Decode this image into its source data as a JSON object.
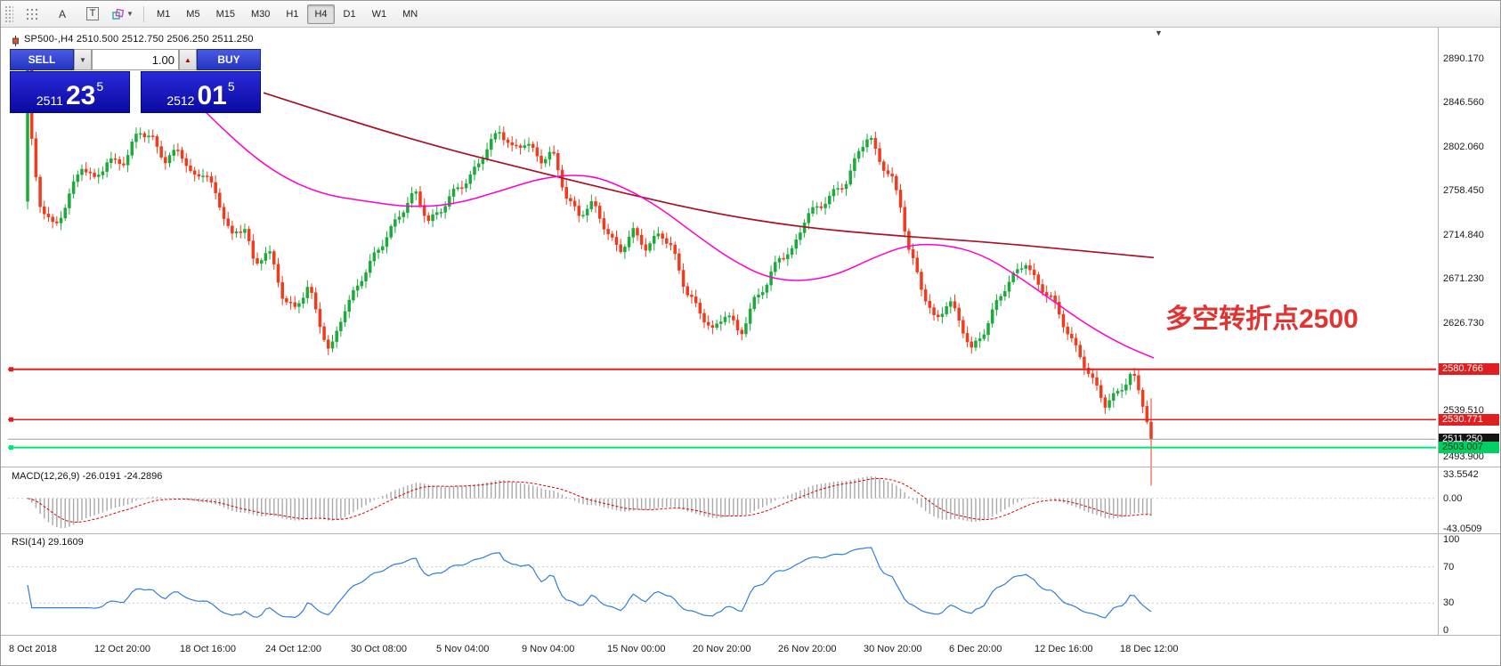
{
  "toolbar": {
    "text_tool_label": "A",
    "label_tool_label": "T",
    "timeframes": [
      "M1",
      "M5",
      "M15",
      "M30",
      "H1",
      "H4",
      "D1",
      "W1",
      "MN"
    ],
    "active_timeframe": "H4"
  },
  "chart": {
    "ohlc_line": "SP500-,H4  2510.500 2512.750 2506.250 2511.250"
  },
  "trade_panel": {
    "sell_label": "SELL",
    "buy_label": "BUY",
    "volume": "1.00",
    "sell_price": {
      "base": "2511",
      "big": "23",
      "sup": "5"
    },
    "buy_price": {
      "base": "2512",
      "big": "01",
      "sup": "5"
    }
  },
  "annotation": {
    "text": "多空转折点2500",
    "color": "#e23333"
  },
  "price_axis": {
    "labels": [
      {
        "text": "2890.170",
        "price": 2890.17
      },
      {
        "text": "2846.560",
        "price": 2846.56
      },
      {
        "text": "2802.060",
        "price": 2802.06
      },
      {
        "text": "2758.450",
        "price": 2758.45
      },
      {
        "text": "2714.840",
        "price": 2714.84
      },
      {
        "text": "2671.230",
        "price": 2671.23
      },
      {
        "text": "2626.730",
        "price": 2626.73
      },
      {
        "text": "2539.510",
        "price": 2539.51
      },
      {
        "text": "2493.900",
        "price": 2493.9
      }
    ],
    "badges": [
      {
        "text": "2580.766",
        "price": 2580.766,
        "bg": "#e02020",
        "fg": "#ffffff"
      },
      {
        "text": "2530.771",
        "price": 2530.771,
        "bg": "#e02020",
        "fg": "#ffffff"
      },
      {
        "text": "2511.250",
        "price": 2511.25,
        "bg": "#141414",
        "fg": "#ffffff"
      },
      {
        "text": "2503.007",
        "price": 2503.007,
        "bg": "#00d063",
        "fg": "#00331a"
      }
    ]
  },
  "macd": {
    "label": "MACD(12,26,9) -26.0191 -24.2896",
    "values": {
      "macd": "-26.0191",
      "signal": "-24.2896"
    },
    "range": {
      "max": 33.5542,
      "min": -43.0509
    },
    "axis": [
      {
        "text": "33.5542",
        "v": 33.5542
      },
      {
        "text": "0.00",
        "v": 0
      },
      {
        "text": "-43.0509",
        "v": -43.0509
      }
    ]
  },
  "rsi": {
    "label": "RSI(14) 29.1609",
    "value": "29.1609",
    "axis": [
      {
        "text": "100",
        "v": 100
      },
      {
        "text": "70",
        "v": 70
      },
      {
        "text": "30",
        "v": 30
      },
      {
        "text": "0",
        "v": 0
      }
    ],
    "guide_levels": [
      70,
      30
    ]
  },
  "time_axis": [
    "8 Oct 2018",
    "12 Oct 20:00",
    "18 Oct 16:00",
    "24 Oct 12:00",
    "30 Oct 08:00",
    "5 Nov 04:00",
    "9 Nov 04:00",
    "15 Nov 00:00",
    "20 Nov 20:00",
    "26 Nov 20:00",
    "30 Nov 20:00",
    "6 Dec 20:00",
    "12 Dec 16:00",
    "18 Dec 12:00"
  ],
  "chart_data": {
    "type": "candlestick",
    "symbol": "SP500-",
    "timeframe": "H4",
    "ohlc_current": {
      "open": 2510.5,
      "high": 2512.75,
      "low": 2506.25,
      "close": 2511.25
    },
    "bid": 2511.235,
    "ask": 2512.015,
    "price_range": {
      "min": 2484,
      "max": 2920
    },
    "levels": [
      {
        "price": 2580.766,
        "color": "#e02020",
        "width": 2,
        "handle": true
      },
      {
        "price": 2530.771,
        "color": "#e02020",
        "width": 1.5,
        "handle": true
      },
      {
        "price": 2511.25,
        "color": "#9a9a9a",
        "width": 1,
        "handle": false
      },
      {
        "price": 2503.007,
        "color": "#00e673",
        "width": 2,
        "handle": true
      }
    ],
    "colors": {
      "up": "#1daa3c",
      "down": "#f03b1d",
      "ma_mid": "#ff00cc",
      "ma_long": "#aa1122",
      "macd_hist": "#a8a8a8",
      "macd_signal": "#dd0000",
      "rsi_line": "#2f7ed8"
    },
    "candle_count": 270,
    "first_candle": {
      "open": 2748,
      "close": 2885,
      "high": 2892,
      "low": 2740
    },
    "last_candle": {
      "close": 2511.25,
      "high": 2552,
      "low": 2465
    },
    "price_path": [
      [
        0.0,
        2885
      ],
      [
        0.004,
        2800
      ],
      [
        0.01,
        2745
      ],
      [
        0.024,
        2722
      ],
      [
        0.036,
        2752
      ],
      [
        0.048,
        2782
      ],
      [
        0.059,
        2768
      ],
      [
        0.071,
        2790
      ],
      [
        0.087,
        2786
      ],
      [
        0.099,
        2818
      ],
      [
        0.111,
        2812
      ],
      [
        0.123,
        2788
      ],
      [
        0.135,
        2798
      ],
      [
        0.147,
        2772
      ],
      [
        0.158,
        2780
      ],
      [
        0.17,
        2745
      ],
      [
        0.182,
        2712
      ],
      [
        0.194,
        2726
      ],
      [
        0.202,
        2682
      ],
      [
        0.214,
        2700
      ],
      [
        0.226,
        2656
      ],
      [
        0.238,
        2642
      ],
      [
        0.25,
        2664
      ],
      [
        0.258,
        2630
      ],
      [
        0.269,
        2598
      ],
      [
        0.281,
        2640
      ],
      [
        0.293,
        2660
      ],
      [
        0.309,
        2695
      ],
      [
        0.321,
        2718
      ],
      [
        0.333,
        2736
      ],
      [
        0.345,
        2756
      ],
      [
        0.357,
        2730
      ],
      [
        0.368,
        2740
      ],
      [
        0.38,
        2756
      ],
      [
        0.392,
        2770
      ],
      [
        0.408,
        2800
      ],
      [
        0.42,
        2816
      ],
      [
        0.432,
        2800
      ],
      [
        0.444,
        2810
      ],
      [
        0.456,
        2786
      ],
      [
        0.467,
        2796
      ],
      [
        0.479,
        2756
      ],
      [
        0.491,
        2734
      ],
      [
        0.503,
        2744
      ],
      [
        0.515,
        2720
      ],
      [
        0.527,
        2700
      ],
      [
        0.539,
        2716
      ],
      [
        0.551,
        2700
      ],
      [
        0.563,
        2720
      ],
      [
        0.574,
        2700
      ],
      [
        0.586,
        2656
      ],
      [
        0.598,
        2640
      ],
      [
        0.61,
        2620
      ],
      [
        0.622,
        2636
      ],
      [
        0.634,
        2614
      ],
      [
        0.646,
        2650
      ],
      [
        0.658,
        2666
      ],
      [
        0.669,
        2690
      ],
      [
        0.681,
        2700
      ],
      [
        0.693,
        2736
      ],
      [
        0.705,
        2740
      ],
      [
        0.717,
        2756
      ],
      [
        0.729,
        2770
      ],
      [
        0.741,
        2800
      ],
      [
        0.749,
        2812
      ],
      [
        0.757,
        2790
      ],
      [
        0.769,
        2774
      ],
      [
        0.777,
        2744
      ],
      [
        0.784,
        2700
      ],
      [
        0.796,
        2660
      ],
      [
        0.808,
        2630
      ],
      [
        0.82,
        2650
      ],
      [
        0.832,
        2620
      ],
      [
        0.84,
        2600
      ],
      [
        0.852,
        2622
      ],
      [
        0.864,
        2650
      ],
      [
        0.876,
        2670
      ],
      [
        0.888,
        2690
      ],
      [
        0.9,
        2664
      ],
      [
        0.911,
        2650
      ],
      [
        0.923,
        2624
      ],
      [
        0.935,
        2600
      ],
      [
        0.947,
        2570
      ],
      [
        0.959,
        2545
      ],
      [
        0.971,
        2560
      ],
      [
        0.983,
        2578
      ],
      [
        0.994,
        2540
      ],
      [
        1.0,
        2511
      ]
    ],
    "ma_mid_points": [
      [
        215,
        2850
      ],
      [
        260,
        2810
      ],
      [
        310,
        2775
      ],
      [
        360,
        2755
      ],
      [
        410,
        2748
      ],
      [
        460,
        2742
      ],
      [
        510,
        2745
      ],
      [
        560,
        2758
      ],
      [
        610,
        2772
      ],
      [
        660,
        2775
      ],
      [
        700,
        2762
      ],
      [
        740,
        2742
      ],
      [
        780,
        2715
      ],
      [
        820,
        2690
      ],
      [
        860,
        2672
      ],
      [
        900,
        2668
      ],
      [
        940,
        2675
      ],
      [
        980,
        2692
      ],
      [
        1020,
        2705
      ],
      [
        1060,
        2705
      ],
      [
        1100,
        2696
      ],
      [
        1140,
        2675
      ],
      [
        1180,
        2650
      ],
      [
        1220,
        2625
      ],
      [
        1260,
        2605
      ],
      [
        1295,
        2592
      ]
    ],
    "ma_long_points": [
      [
        295,
        2856
      ],
      [
        400,
        2826
      ],
      [
        500,
        2800
      ],
      [
        600,
        2778
      ],
      [
        700,
        2756
      ],
      [
        800,
        2736
      ],
      [
        900,
        2722
      ],
      [
        1000,
        2714
      ],
      [
        1100,
        2708
      ],
      [
        1200,
        2700
      ],
      [
        1295,
        2692
      ]
    ]
  }
}
